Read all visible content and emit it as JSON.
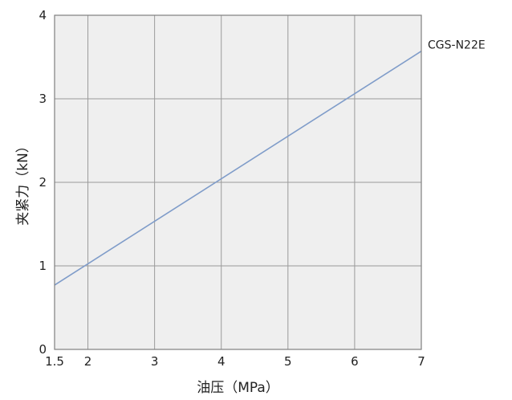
{
  "chart_data": {
    "type": "line",
    "title": "",
    "xlabel": "油压（MPa）",
    "ylabel": "夹紧力（kN）",
    "xlim": [
      1.5,
      7
    ],
    "ylim": [
      0,
      4
    ],
    "xticks": [
      1.5,
      2,
      3,
      4,
      5,
      6,
      7
    ],
    "xtick_labels": [
      "1.5",
      "2",
      "3",
      "4",
      "5",
      "6",
      "7"
    ],
    "yticks": [
      0,
      1,
      2,
      3,
      4
    ],
    "ytick_labels": [
      "0",
      "1",
      "2",
      "3",
      "4"
    ],
    "grid": true,
    "legend": "none",
    "series": [
      {
        "name": "CGS-N22E",
        "x": [
          1.5,
          7
        ],
        "y": [
          0.77,
          3.57
        ]
      }
    ],
    "colors": {
      "line": "#7f9cc9",
      "plot_background": "#efefef",
      "grid": "#9a9a9a",
      "frame": "#7f7f7f"
    }
  }
}
